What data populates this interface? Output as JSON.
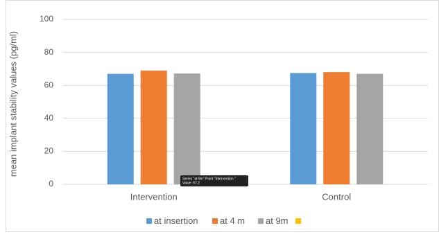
{
  "chart_data": {
    "type": "bar",
    "y_label": "mean implant stability values (pg/ml)",
    "categories": [
      "Intervention",
      "Control"
    ],
    "series": [
      {
        "name": "at insertion",
        "color": "#5b9bd5",
        "values": [
          67,
          67.5
        ]
      },
      {
        "name": "at 4 m",
        "color": "#ed7d31",
        "values": [
          69,
          68
        ]
      },
      {
        "name": "at 9m",
        "color": "#a5a5a5",
        "values": [
          67.2,
          67
        ]
      },
      {
        "color": "#ffc000",
        "values": [
          null,
          null
        ]
      }
    ],
    "ylim": [
      0,
      100
    ],
    "yticks": [
      0,
      20,
      40,
      60,
      80,
      100
    ],
    "grid": true,
    "legend": "bottom",
    "tooltip": [
      "Series \"at 9m\" Point \"Intervention \"",
      "Value: 67.2"
    ]
  }
}
